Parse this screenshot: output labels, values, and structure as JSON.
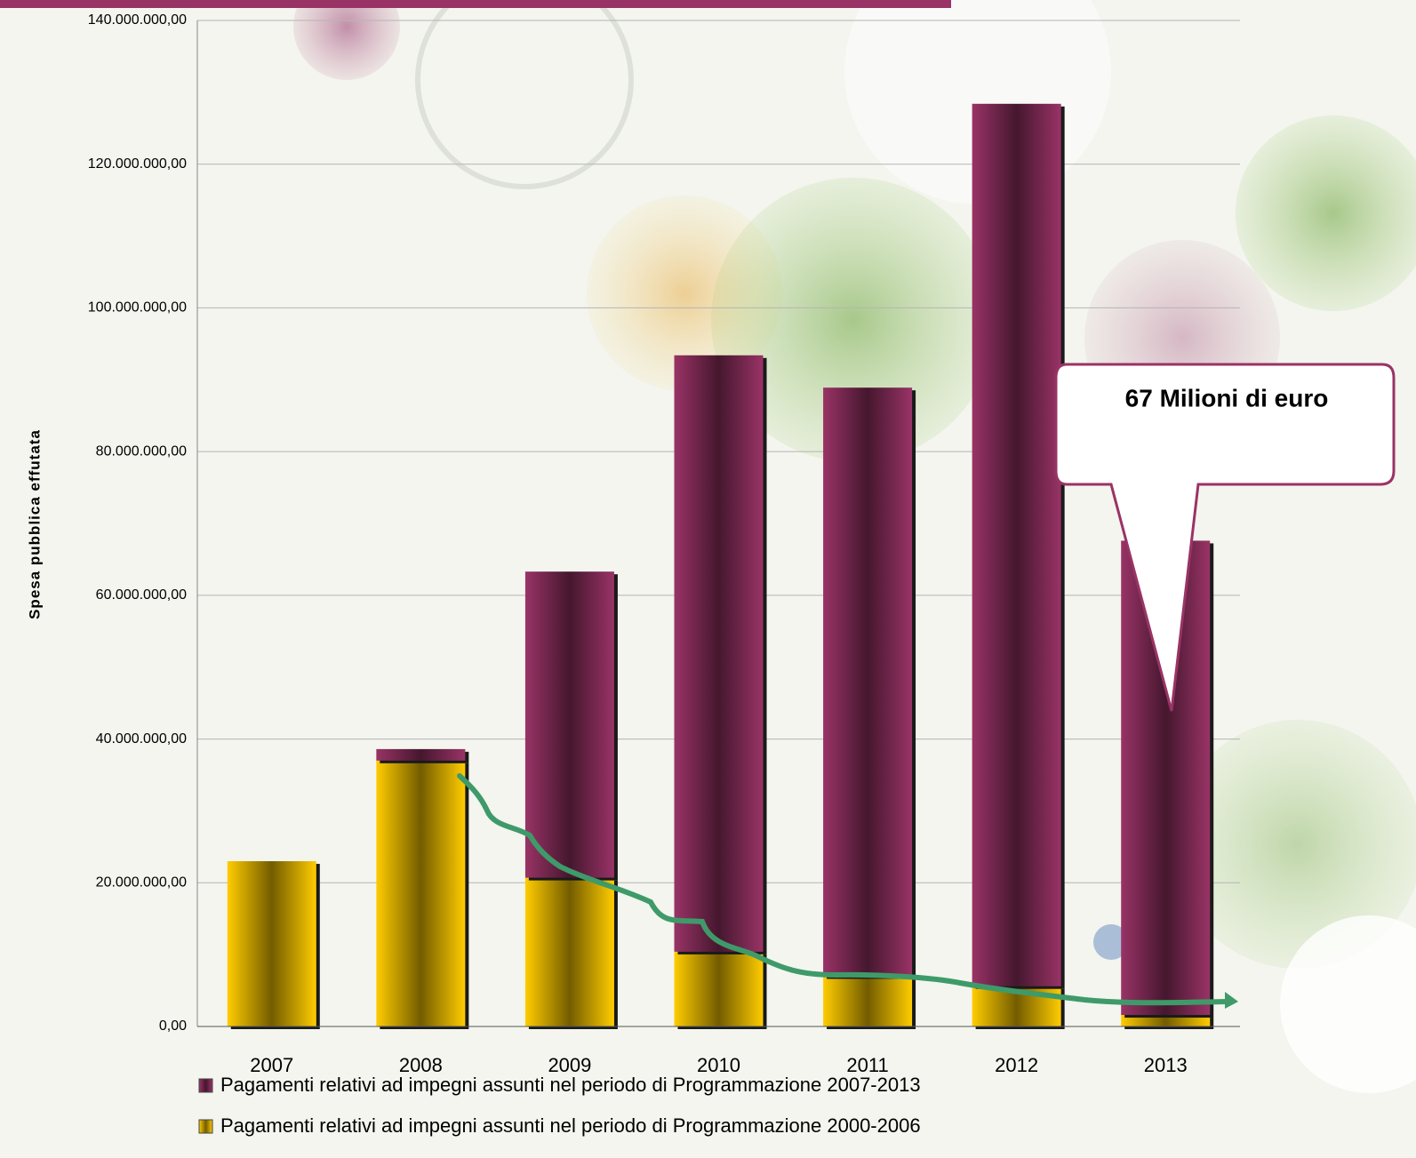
{
  "chart_data": {
    "type": "bar",
    "stacked": true,
    "y_label": "Spesa pubblica effutata",
    "annotation": "67 Milioni di euro",
    "categories": [
      "2007",
      "2008",
      "2009",
      "2010",
      "2011",
      "2012",
      "2013"
    ],
    "series": [
      {
        "name": "Pagamenti relativi ad impegni assunti nel periodo di Programmazione 2007-2013",
        "color": "#993366",
        "values": [
          0,
          1600000,
          42600000,
          83000000,
          81900000,
          122800000,
          66000000
        ]
      },
      {
        "name": "Pagamenti relativi ad impegni assunti nel periodo di Programmazione 2000-2006",
        "color": "#ffcc00",
        "values": [
          23000000,
          37000000,
          20700000,
          10400000,
          7000000,
          5600000,
          1600000
        ]
      }
    ],
    "ylim": [
      0,
      140000000
    ],
    "yticks": [
      {
        "value": 0,
        "label": "0,00"
      },
      {
        "value": 20000000,
        "label": "20.000.000,00"
      },
      {
        "value": 40000000,
        "label": "40.000.000,00"
      },
      {
        "value": 60000000,
        "label": "60.000.000,00"
      },
      {
        "value": 80000000,
        "label": "80.000.000,00"
      },
      {
        "value": 100000000,
        "label": "100.000.000,00"
      },
      {
        "value": 120000000,
        "label": "120.000.000,00"
      },
      {
        "value": 140000000,
        "label": "140.000.000,00"
      }
    ],
    "grid": true
  }
}
